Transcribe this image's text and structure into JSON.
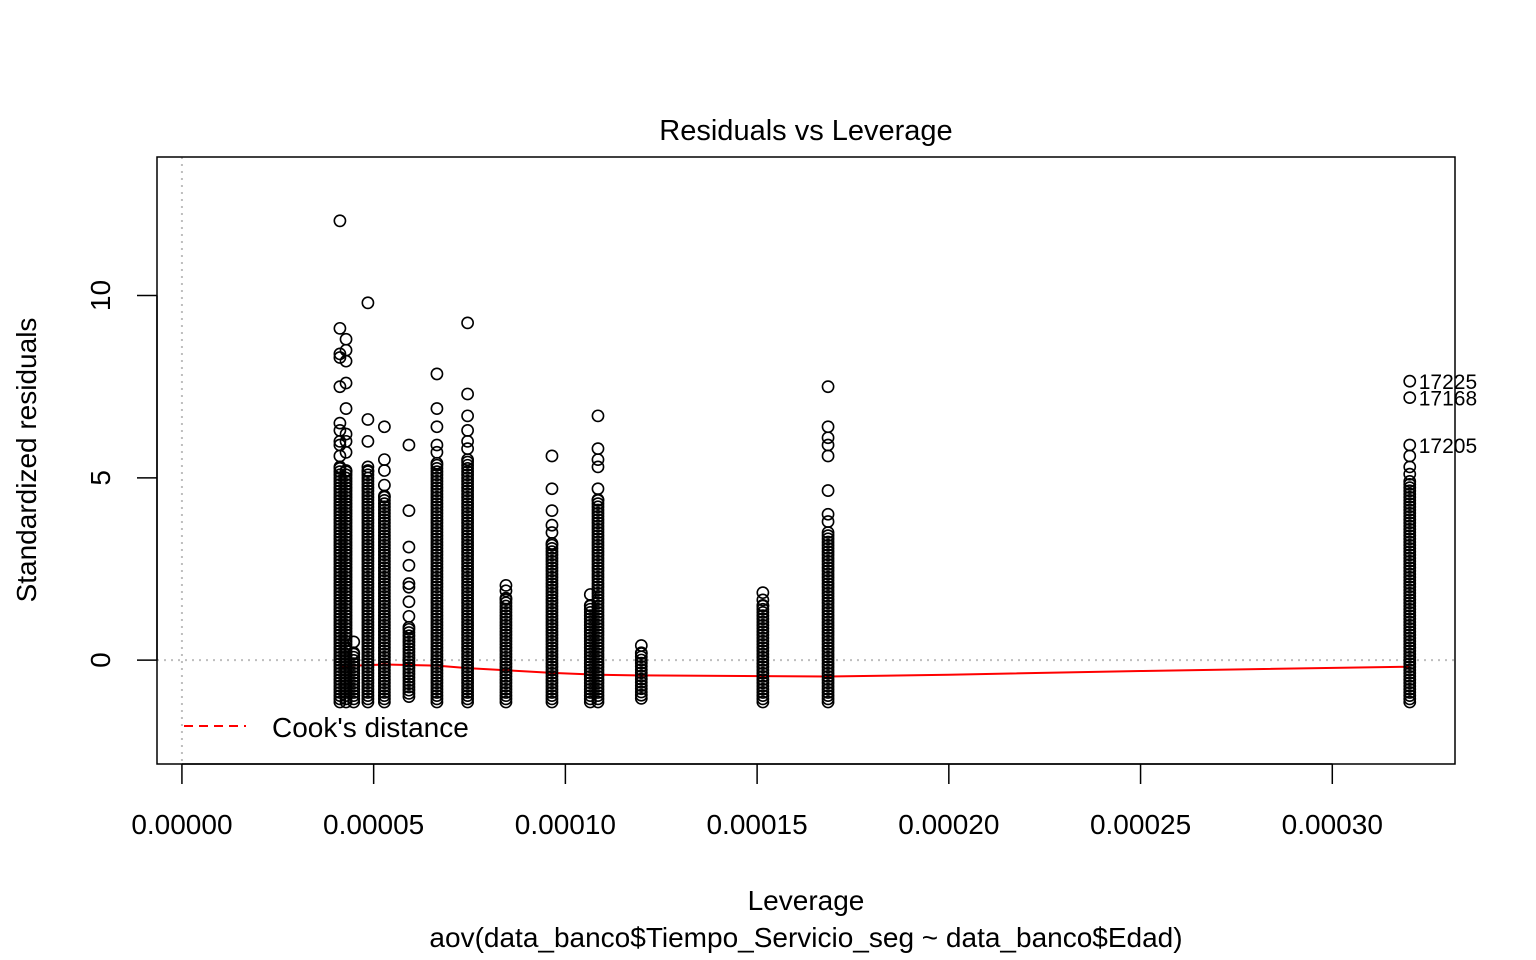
{
  "chart_data": {
    "type": "scatter",
    "title": "Residuals vs Leverage",
    "xlabel": "Leverage",
    "ylabel": "Standardized residuals",
    "subtitle": "aov(data_banco$Tiempo_Servicio_seg ~ data_banco$Edad)",
    "xlim": [
      -6.5e-06,
      0.000332
    ],
    "ylim": [
      -2.85,
      13.8
    ],
    "x_ticks": [
      0,
      5e-05,
      0.0001,
      0.00015,
      0.0002,
      0.00025,
      0.0003
    ],
    "x_tick_labels": [
      "0.00000",
      "0.00005",
      "0.00010",
      "0.00015",
      "0.00020",
      "0.00025",
      "0.00030"
    ],
    "y_ticks": [
      0,
      5,
      10
    ],
    "y_tick_labels": [
      "0",
      "5",
      "10"
    ],
    "reference_lines": {
      "h": 0,
      "v": 0,
      "style": "dotted",
      "color": "#bebebe"
    },
    "point_color": "#000000",
    "groups": [
      {
        "x": 4.12e-05,
        "min": -1.15,
        "max": 5.3,
        "outliers": [
          12.05,
          9.1,
          8.4,
          8.3,
          7.5,
          6.5,
          6.3,
          6.0,
          5.9,
          5.6
        ]
      },
      {
        "x": 4.28e-05,
        "min": -1.15,
        "max": 5.2,
        "outliers": [
          8.8,
          8.5,
          8.2,
          7.6,
          6.9,
          6.2,
          6.0,
          5.7
        ]
      },
      {
        "x": 4.48e-05,
        "min": -1.15,
        "max": 0.2,
        "outliers": [
          0.5
        ]
      },
      {
        "x": 4.85e-05,
        "min": -1.15,
        "max": 5.2,
        "outliers": [
          9.8,
          6.6,
          6.0,
          5.3
        ]
      },
      {
        "x": 5.28e-05,
        "min": -1.15,
        "max": 4.5,
        "outliers": [
          6.4,
          5.5,
          5.2,
          4.8
        ]
      },
      {
        "x": 5.92e-05,
        "min": -1.0,
        "max": 0.9,
        "outliers": [
          5.9,
          4.1,
          3.1,
          2.6,
          2.1,
          2.0,
          1.6,
          1.2
        ]
      },
      {
        "x": 6.65e-05,
        "min": -1.15,
        "max": 5.4,
        "outliers": [
          7.85,
          6.9,
          6.4,
          5.9,
          5.7
        ]
      },
      {
        "x": 7.45e-05,
        "min": -1.15,
        "max": 5.5,
        "outliers": [
          9.25,
          7.3,
          6.7,
          6.3,
          6.0,
          5.8
        ]
      },
      {
        "x": 8.45e-05,
        "min": -1.15,
        "max": 1.7,
        "outliers": [
          2.05,
          1.9
        ]
      },
      {
        "x": 9.65e-05,
        "min": -1.15,
        "max": 3.2,
        "outliers": [
          5.6,
          4.7,
          4.1,
          3.7,
          3.5
        ]
      },
      {
        "x": 0.0001065,
        "min": -1.15,
        "max": 1.5,
        "outliers": [
          1.8
        ]
      },
      {
        "x": 0.0001085,
        "min": -1.15,
        "max": 4.4,
        "outliers": [
          6.7,
          5.8,
          5.5,
          5.3,
          4.7
        ]
      },
      {
        "x": 0.0001198,
        "min": -1.05,
        "max": 0.2,
        "outliers": [
          0.4
        ]
      },
      {
        "x": 0.0001515,
        "min": -1.15,
        "max": 1.5,
        "outliers": [
          1.85,
          1.65
        ]
      },
      {
        "x": 0.0001685,
        "min": -1.15,
        "max": 3.5,
        "outliers": [
          7.5,
          6.4,
          6.1,
          5.9,
          5.6,
          4.65,
          4.0,
          3.8
        ]
      },
      {
        "x": 0.0003202,
        "min": -1.15,
        "max": 4.9,
        "outliers": [
          7.65,
          7.2,
          5.9,
          5.6,
          5.3,
          5.1
        ]
      }
    ],
    "labeled_points": [
      {
        "label": "17225",
        "x": 0.0003202,
        "y": 7.65
      },
      {
        "label": "17168",
        "x": 0.0003202,
        "y": 7.2
      },
      {
        "label": "17205",
        "x": 0.0003202,
        "y": 5.9
      }
    ],
    "smooth_line": {
      "color": "#ff0000",
      "x": [
        4.12e-05,
        4.48e-05,
        5.28e-05,
        6.65e-05,
        7.45e-05,
        8.45e-05,
        9.65e-05,
        0.0001085,
        0.0001198,
        0.0001515,
        0.0001685,
        0.0002,
        0.00025,
        0.0003202
      ],
      "y": [
        -0.2,
        -0.15,
        -0.12,
        -0.15,
        -0.22,
        -0.28,
        -0.35,
        -0.4,
        -0.42,
        -0.44,
        -0.45,
        -0.4,
        -0.3,
        -0.18
      ]
    },
    "legend": {
      "label": "Cook's distance",
      "color": "#ff0000",
      "line_style": "dashed",
      "position": "bottom-left"
    }
  }
}
